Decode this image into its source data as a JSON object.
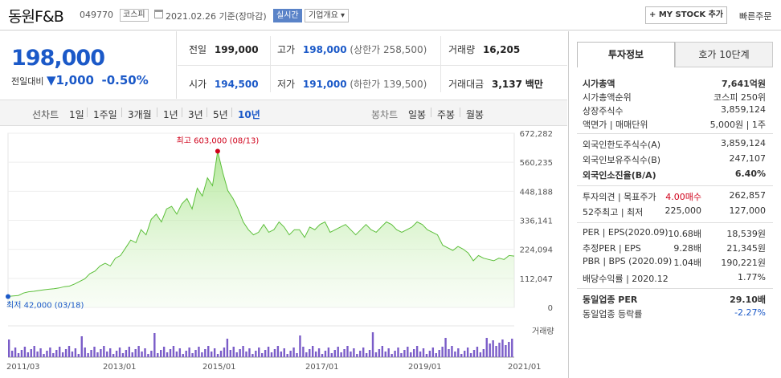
{
  "stock": {
    "name": "동원F&B",
    "code": "049770",
    "market": "코스피",
    "date": "2021.02.26",
    "basis": "기준(장마감)",
    "live_btn": "실시간",
    "info_btn": "기업개요",
    "my_stock_btn": "MY STOCK 추가",
    "quick_order": "빠른주문"
  },
  "price": {
    "current": "198,000",
    "change_label": "전일대비",
    "change_arrow": "▼",
    "change_value": "1,000",
    "change_pct": "-0.50%"
  },
  "summary": {
    "prev_label": "전일",
    "prev_value": "199,000",
    "high_label": "고가",
    "high_value": "198,000",
    "upper_limit": "(상한가 258,500)",
    "volume_label": "거래량",
    "volume_value": "16,205",
    "open_label": "시가",
    "open_value": "194,500",
    "low_label": "저가",
    "low_value": "191,000",
    "lower_limit": "(하한가 139,500)",
    "amount_label": "거래대금",
    "amount_value": "3,137",
    "amount_unit": "백만"
  },
  "periods": {
    "line_label": "선차트",
    "items": [
      "1일",
      "1주일",
      "3개월",
      "1년",
      "3년",
      "5년",
      "10년"
    ],
    "active": "10년",
    "candle_label": "봉차트",
    "candles": [
      "일봉",
      "주봉",
      "월봉"
    ]
  },
  "chart_data": {
    "type": "area",
    "yticks": [
      "672,282",
      "560,235",
      "448,188",
      "336,141",
      "224,094",
      "112,047",
      "0"
    ],
    "ylim": [
      0,
      672282
    ],
    "xticks": [
      "2011/03",
      "2013/01",
      "2015/01",
      "2017/01",
      "2019/01",
      "2021/01"
    ],
    "max_label": "최고 603,000 (08/13)",
    "min_label": "최저 42,000 (03/18)",
    "volume_legend": "거래량",
    "series": [
      42000,
      44000,
      46000,
      55000,
      60000,
      62000,
      65000,
      68000,
      70000,
      72000,
      75000,
      80000,
      82000,
      90000,
      100000,
      110000,
      130000,
      140000,
      160000,
      170000,
      160000,
      190000,
      200000,
      230000,
      260000,
      250000,
      300000,
      280000,
      340000,
      360000,
      330000,
      380000,
      390000,
      360000,
      400000,
      420000,
      380000,
      460000,
      430000,
      500000,
      470000,
      603000,
      520000,
      450000,
      420000,
      380000,
      330000,
      300000,
      280000,
      290000,
      320000,
      290000,
      300000,
      330000,
      310000,
      280000,
      300000,
      300000,
      270000,
      310000,
      300000,
      320000,
      330000,
      290000,
      300000,
      310000,
      320000,
      300000,
      280000,
      300000,
      320000,
      300000,
      290000,
      310000,
      330000,
      320000,
      300000,
      290000,
      300000,
      310000,
      330000,
      320000,
      300000,
      290000,
      280000,
      240000,
      230000,
      220000,
      235000,
      225000,
      210000,
      180000,
      200000,
      190000,
      185000,
      180000,
      190000,
      185000,
      200000,
      198000
    ]
  },
  "invest": {
    "tab_on": "투자정보",
    "tab_off": "호가 10단계",
    "rows1": [
      {
        "l": "시가총액",
        "r": "7,641억원",
        "bold": true
      },
      {
        "l": "시가총액순위",
        "r": "코스피 250위"
      },
      {
        "l": "상장주식수",
        "r": "3,859,124"
      },
      {
        "l": "액면가 | 매매단위",
        "r": "5,000원 | 1주"
      }
    ],
    "rows2": [
      {
        "l": "외국인한도주식수(A)",
        "r": "3,859,124"
      },
      {
        "l": "외국인보유주식수(B)",
        "r": "247,107"
      },
      {
        "l": "외국인소진율(B/A)",
        "r": "6.40%",
        "bold": true
      }
    ],
    "rows3": [
      {
        "l": "투자의견 | 목표주가",
        "m": "4.00매수",
        "r": "262,857"
      },
      {
        "l": "52주최고 | 최저",
        "m": "225,000",
        "r": "127,000"
      }
    ],
    "rows4": [
      {
        "l": "PER | EPS(2020.09)",
        "m": "10.68배",
        "r": "18,539원"
      },
      {
        "l": "추정PER | EPS",
        "m": "9.28배",
        "r": "21,345원"
      },
      {
        "l": "PBR | BPS (2020.09)",
        "m": "1.04배",
        "r": "190,221원"
      },
      {
        "l": "배당수익률 | 2020.12",
        "r": "1.77%"
      }
    ],
    "rows5": [
      {
        "l": "동일업종 PER",
        "r": "29.10배",
        "bold": true
      },
      {
        "l": "동일업종 등락률",
        "r": "-2.27%",
        "blue": true
      }
    ]
  },
  "colors": {
    "up": "#d0021b",
    "down": "#1b59c8",
    "area": "#7ed25a",
    "volume": "#7a5cc8"
  }
}
